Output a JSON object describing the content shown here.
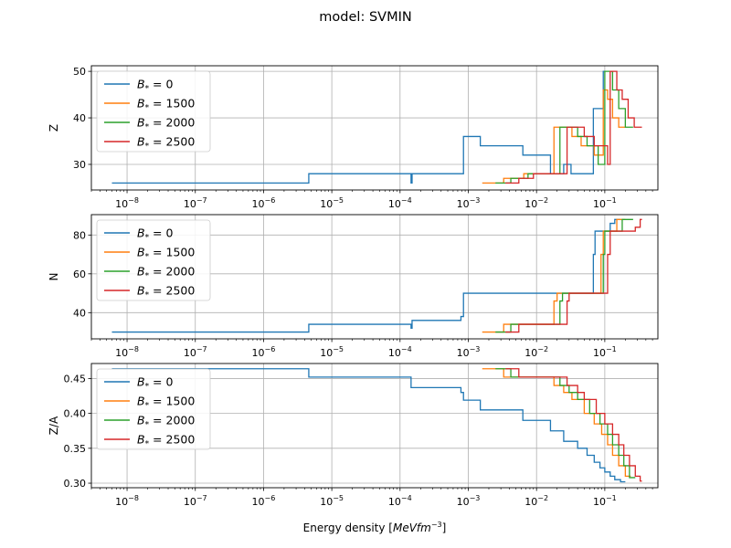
{
  "figure": {
    "title": "model: SVMIN",
    "xlabel_prefix": "Energy density [",
    "xlabel_units": "MeVfm",
    "xlabel_exp": "−3",
    "xlabel_suffix": "]"
  },
  "chart_data": [
    {
      "type": "line",
      "ylabel": "Z",
      "xscale": "log",
      "xlim": [
        3e-09,
        0.6
      ],
      "ylim": [
        24.5,
        51.2
      ],
      "yticks": [
        30,
        40,
        50
      ],
      "ytick_labels": [
        "30",
        "40",
        "50"
      ],
      "grid": true,
      "legend": "top-left",
      "series": [
        {
          "name": "B* = 0",
          "color": "#1f77b4",
          "x": [
            6e-09,
            4.6e-06,
            4.6e-06,
            0.000145,
            0.000145,
            0.00015,
            0.00015,
            0.00085,
            0.00085,
            0.0015,
            0.0015,
            0.0063,
            0.0063,
            0.016,
            0.016,
            0.025,
            0.025,
            0.032,
            0.032,
            0.068,
            0.068,
            0.095,
            0.095,
            0.1
          ],
          "y": [
            26,
            26,
            28,
            28,
            26,
            26,
            28,
            28,
            36,
            36,
            34,
            34,
            32,
            32,
            28,
            28,
            30,
            30,
            28,
            28,
            42,
            42,
            50,
            50
          ]
        },
        {
          "name": "B* = 1500",
          "color": "#ff7f0e",
          "x": [
            0.0016,
            0.0033,
            0.0033,
            0.0065,
            0.0065,
            0.018,
            0.018,
            0.033,
            0.033,
            0.045,
            0.045,
            0.07,
            0.07,
            0.095,
            0.095,
            0.11,
            0.11,
            0.13,
            0.13,
            0.16,
            0.16,
            0.2
          ],
          "y": [
            26,
            26,
            27,
            27,
            28,
            28,
            38,
            38,
            36,
            36,
            34,
            34,
            32,
            32,
            46,
            46,
            44,
            44,
            40,
            40,
            38,
            38
          ]
        },
        {
          "name": "B* = 2000",
          "color": "#2ca02c",
          "x": [
            0.0025,
            0.0042,
            0.0042,
            0.0075,
            0.0075,
            0.022,
            0.022,
            0.04,
            0.04,
            0.055,
            0.055,
            0.08,
            0.08,
            0.1,
            0.1,
            0.13,
            0.13,
            0.16,
            0.16,
            0.2,
            0.2,
            0.26
          ],
          "y": [
            26,
            26,
            27,
            27,
            28,
            28,
            38,
            38,
            36,
            36,
            34,
            34,
            30,
            30,
            50,
            50,
            46,
            46,
            42,
            42,
            38,
            38
          ]
        },
        {
          "name": "B* = 2500",
          "color": "#d62728",
          "x": [
            0.0035,
            0.0055,
            0.0055,
            0.009,
            0.009,
            0.028,
            0.028,
            0.05,
            0.05,
            0.07,
            0.07,
            0.11,
            0.11,
            0.12,
            0.12,
            0.15,
            0.15,
            0.18,
            0.18,
            0.22,
            0.22,
            0.27,
            0.27,
            0.35
          ],
          "y": [
            26,
            26,
            27,
            27,
            28,
            28,
            38,
            38,
            36,
            36,
            34,
            34,
            30,
            30,
            50,
            50,
            46,
            46,
            44,
            44,
            40,
            40,
            38,
            38
          ]
        }
      ]
    },
    {
      "type": "line",
      "ylabel": "N",
      "xscale": "log",
      "xlim": [
        3e-09,
        0.6
      ],
      "ylim": [
        26.5,
        90.5
      ],
      "yticks": [
        40,
        60,
        80
      ],
      "ytick_labels": [
        "40",
        "60",
        "80"
      ],
      "grid": true,
      "legend": "top-left",
      "series": [
        {
          "name": "B* = 0",
          "color": "#1f77b4",
          "x": [
            6e-09,
            4.6e-06,
            4.6e-06,
            0.000145,
            0.000145,
            0.00015,
            0.00015,
            0.00078,
            0.00078,
            0.00085,
            0.00085,
            0.068,
            0.068,
            0.072,
            0.072,
            0.12,
            0.12,
            0.14,
            0.14,
            0.17
          ],
          "y": [
            30,
            30,
            34,
            34,
            32,
            32,
            36,
            36,
            38,
            38,
            50,
            50,
            70,
            70,
            82,
            82,
            86,
            86,
            88,
            88
          ]
        },
        {
          "name": "B* = 1500",
          "color": "#ff7f0e",
          "x": [
            0.0016,
            0.0033,
            0.0033,
            0.018,
            0.018,
            0.02,
            0.02,
            0.088,
            0.088,
            0.095,
            0.095,
            0.15,
            0.15,
            0.2
          ],
          "y": [
            30,
            30,
            34,
            34,
            46,
            46,
            50,
            50,
            70,
            70,
            82,
            82,
            88,
            88
          ]
        },
        {
          "name": "B* = 2000",
          "color": "#2ca02c",
          "x": [
            0.0025,
            0.0042,
            0.0042,
            0.022,
            0.022,
            0.024,
            0.024,
            0.095,
            0.095,
            0.1,
            0.1,
            0.18,
            0.18,
            0.26
          ],
          "y": [
            30,
            30,
            34,
            34,
            46,
            46,
            50,
            50,
            70,
            70,
            82,
            82,
            88,
            88
          ]
        },
        {
          "name": "B* = 2500",
          "color": "#d62728",
          "x": [
            0.0035,
            0.0055,
            0.0055,
            0.028,
            0.028,
            0.03,
            0.03,
            0.11,
            0.11,
            0.12,
            0.12,
            0.28,
            0.28,
            0.33,
            0.33,
            0.35
          ],
          "y": [
            30,
            30,
            34,
            34,
            46,
            46,
            50,
            50,
            70,
            70,
            82,
            82,
            84,
            84,
            88,
            88
          ]
        }
      ]
    },
    {
      "type": "line",
      "ylabel": "Z/A",
      "xscale": "log",
      "xlim": [
        3e-09,
        0.6
      ],
      "ylim": [
        0.2935,
        0.4715
      ],
      "yticks": [
        0.3,
        0.35,
        0.4,
        0.45
      ],
      "ytick_labels": [
        "0.30",
        "0.35",
        "0.40",
        "0.45"
      ],
      "grid": true,
      "legend": "top-left",
      "series": [
        {
          "name": "B* = 0",
          "color": "#1f77b4",
          "x": [
            6e-09,
            4.6e-06,
            4.6e-06,
            0.000145,
            0.000145,
            0.00078,
            0.00078,
            0.00085,
            0.00085,
            0.0015,
            0.0015,
            0.0063,
            0.0063,
            0.016,
            0.016,
            0.025,
            0.025,
            0.04,
            0.04,
            0.055,
            0.055,
            0.07,
            0.07,
            0.085,
            0.085,
            0.1,
            0.1,
            0.12,
            0.12,
            0.14,
            0.14,
            0.17,
            0.17,
            0.2
          ],
          "y": [
            0.464,
            0.464,
            0.452,
            0.452,
            0.437,
            0.437,
            0.43,
            0.43,
            0.419,
            0.419,
            0.405,
            0.405,
            0.39,
            0.39,
            0.375,
            0.375,
            0.36,
            0.36,
            0.35,
            0.35,
            0.34,
            0.34,
            0.33,
            0.33,
            0.322,
            0.322,
            0.316,
            0.316,
            0.31,
            0.31,
            0.305,
            0.305,
            0.302,
            0.302
          ]
        },
        {
          "name": "B* = 1500",
          "color": "#ff7f0e",
          "x": [
            0.0016,
            0.0033,
            0.0033,
            0.018,
            0.018,
            0.025,
            0.025,
            0.033,
            0.033,
            0.05,
            0.05,
            0.07,
            0.07,
            0.09,
            0.09,
            0.11,
            0.11,
            0.13,
            0.13,
            0.16,
            0.16,
            0.2,
            0.2,
            0.24
          ],
          "y": [
            0.464,
            0.464,
            0.452,
            0.452,
            0.44,
            0.44,
            0.43,
            0.43,
            0.42,
            0.42,
            0.4,
            0.4,
            0.385,
            0.385,
            0.37,
            0.37,
            0.355,
            0.355,
            0.34,
            0.34,
            0.325,
            0.325,
            0.31,
            0.31
          ]
        },
        {
          "name": "B* = 2000",
          "color": "#2ca02c",
          "x": [
            0.0025,
            0.0042,
            0.0042,
            0.022,
            0.022,
            0.03,
            0.03,
            0.04,
            0.04,
            0.06,
            0.06,
            0.085,
            0.085,
            0.11,
            0.11,
            0.13,
            0.13,
            0.16,
            0.16,
            0.19,
            0.19,
            0.23,
            0.23,
            0.28
          ],
          "y": [
            0.464,
            0.464,
            0.452,
            0.452,
            0.44,
            0.44,
            0.43,
            0.43,
            0.42,
            0.42,
            0.4,
            0.4,
            0.385,
            0.385,
            0.37,
            0.37,
            0.355,
            0.355,
            0.34,
            0.34,
            0.325,
            0.325,
            0.308,
            0.308
          ]
        },
        {
          "name": "B* = 2500",
          "color": "#d62728",
          "x": [
            0.0035,
            0.0055,
            0.0055,
            0.028,
            0.028,
            0.04,
            0.04,
            0.05,
            0.05,
            0.075,
            0.075,
            0.1,
            0.1,
            0.13,
            0.13,
            0.16,
            0.16,
            0.19,
            0.19,
            0.23,
            0.23,
            0.28,
            0.28,
            0.33,
            0.33,
            0.35
          ],
          "y": [
            0.464,
            0.464,
            0.452,
            0.452,
            0.44,
            0.44,
            0.43,
            0.43,
            0.42,
            0.42,
            0.4,
            0.4,
            0.385,
            0.385,
            0.37,
            0.37,
            0.355,
            0.355,
            0.34,
            0.34,
            0.325,
            0.325,
            0.31,
            0.31,
            0.303,
            0.303
          ]
        }
      ]
    }
  ]
}
